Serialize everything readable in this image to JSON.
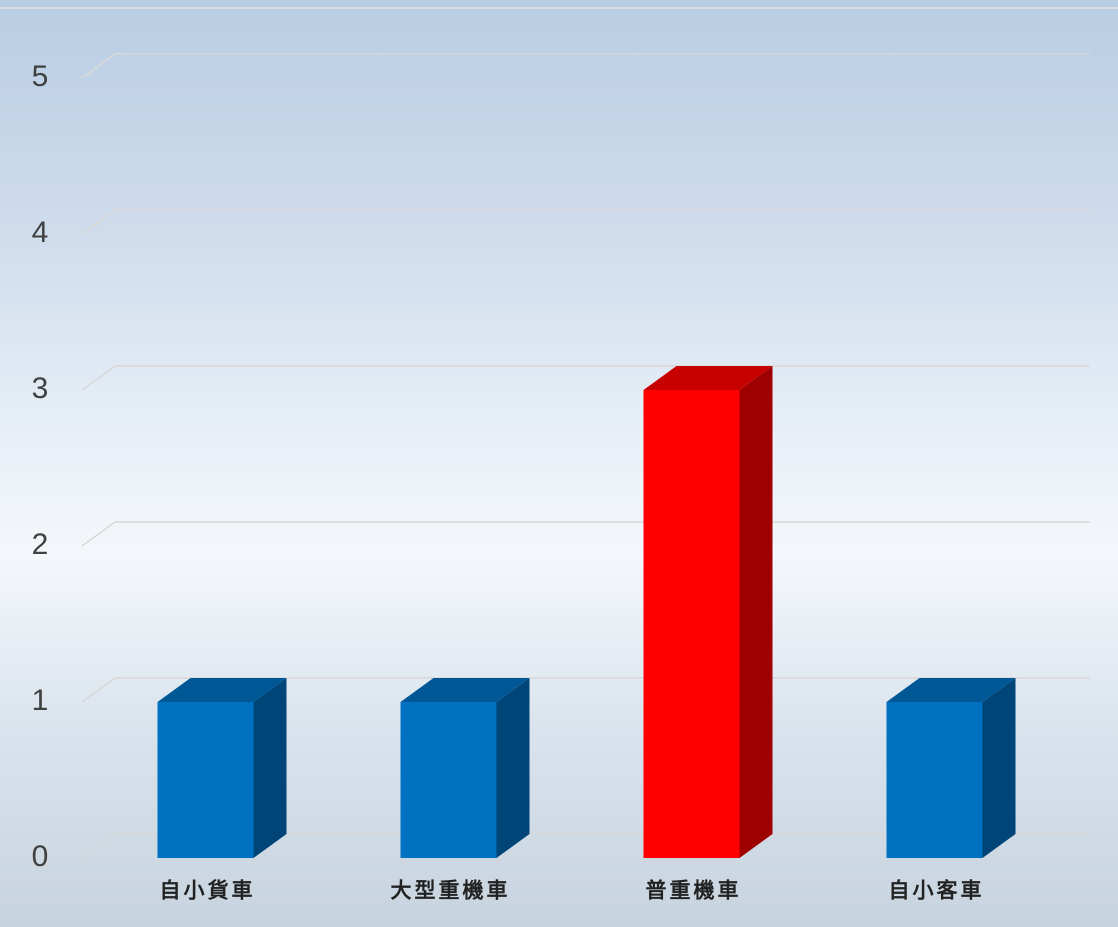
{
  "chart_data": {
    "type": "bar3d",
    "categories": [
      "自小貨車",
      "大型重機車",
      "普重機車",
      "自小客車"
    ],
    "values": [
      1,
      1,
      3,
      1
    ],
    "colors": [
      "#0070c0",
      "#0070c0",
      "#ff0000",
      "#0070c0"
    ],
    "ylim": [
      0,
      5
    ],
    "yticks": [
      0,
      1,
      2,
      3,
      4,
      5
    ],
    "grid": true
  }
}
